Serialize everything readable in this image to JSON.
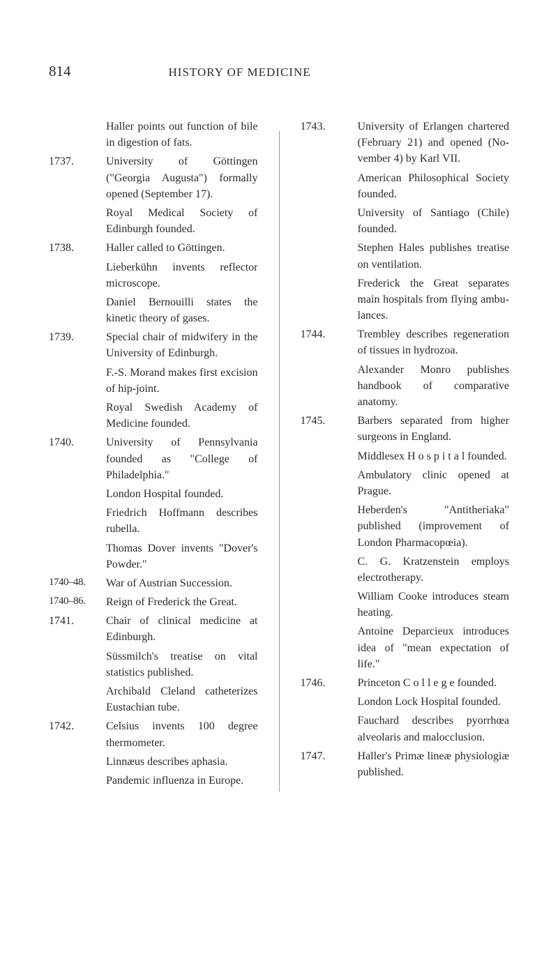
{
  "header": {
    "page_number": "814",
    "running_title": "HISTORY OF MEDICINE"
  },
  "left_column": [
    {
      "year": "",
      "text": "Haller points out func­tion of bile in diges­tion of fats."
    },
    {
      "year": "1737.",
      "text": "University of Göttingen (\"Georgia Augusta\") formally opened (Sep­tember 17)."
    },
    {
      "year": "",
      "text": "Royal Medical Society of Edinburgh founded."
    },
    {
      "year": "1738.",
      "text": "Haller called to Göttin­gen."
    },
    {
      "year": "",
      "text": "Lieberkühn invents re­flector microscope."
    },
    {
      "year": "",
      "text": "Daniel Bernouilli states the kinetic theory of gases."
    },
    {
      "year": "1739.",
      "text": "Special chair of mid­wifery in the Univer­sity of Edinburgh."
    },
    {
      "year": "",
      "text": "F.-S. Morand makes first excision of hip-joint."
    },
    {
      "year": "",
      "text": "Royal Swedish Academy of Medicine founded."
    },
    {
      "year": "1740.",
      "text": "University of Pennsyl­vania founded as \"Col­lege of Philadelphia.\""
    },
    {
      "year": "",
      "text": "London Hospital founded."
    },
    {
      "year": "",
      "text": "Friedrich Hoffmann de­scribes rubella."
    },
    {
      "year": "",
      "text": "Thomas Dover invents \"Dover's Powder.\""
    },
    {
      "year": "1740–48.",
      "text": "War of Austrian Suc­cession."
    },
    {
      "year": "1740–86.",
      "text": "Reign of Frederick the Great."
    },
    {
      "year": "1741.",
      "text": "Chair of clinical medi­cine at Edinburgh."
    },
    {
      "year": "",
      "text": "Süssmilch's treatise on vital statistics pub­lished."
    },
    {
      "year": "",
      "text": "Archibald Cleland cathe­terizes Eustachian tube."
    },
    {
      "year": "1742.",
      "text": "Celsius invents 100 de­gree thermometer."
    },
    {
      "year": "",
      "text": "Linnæus describes apha­sia."
    },
    {
      "year": "",
      "text": "Pandemic influenza in Europe."
    }
  ],
  "right_column": [
    {
      "year": "1743.",
      "text": "University of Erlangen chartered (February 21) and opened (No­vember 4) by Karl VII."
    },
    {
      "year": "",
      "text": "American Philosophical Society founded."
    },
    {
      "year": "",
      "text": "University of Santiago (Chile) founded."
    },
    {
      "year": "",
      "text": "Stephen Hales publishes treatise on ventilation."
    },
    {
      "year": "",
      "text": "Frederick the Great separates main hospi­tals from flying ambu­lances."
    },
    {
      "year": "1744.",
      "text": "Trembley describes re­generation of tissues in hydrozoa."
    },
    {
      "year": "",
      "text": "Alexander Monro pub­lishes handbook of comparative anatomy."
    },
    {
      "year": "1745.",
      "text": "Barbers separated from higher surgeons in England."
    },
    {
      "year": "",
      "text": "Middlesex H o s p i t a l founded."
    },
    {
      "year": "",
      "text": "Ambulatory clinic opened at Prague."
    },
    {
      "year": "",
      "text": "Heberden's \"Antitheri­aka\" published (im­provement of London Pharmacopœia)."
    },
    {
      "year": "",
      "text": "C. G. Kratzenstein em­ploys electrotherapy."
    },
    {
      "year": "",
      "text": "William Cooke intro­duces steam heating."
    },
    {
      "year": "",
      "text": "Antoine Deparcieux in­troduces idea of \"mean expectation of life.\""
    },
    {
      "year": "1746.",
      "text": "Princeton C o l l e g e founded."
    },
    {
      "year": "",
      "text": "London Lock Hospital founded."
    },
    {
      "year": "",
      "text": "Fauchard describes py­orrhœa alveolaris and malocclusion."
    },
    {
      "year": "1747.",
      "text": "Haller's Primæ lineæ phy­siologiæ published."
    }
  ]
}
